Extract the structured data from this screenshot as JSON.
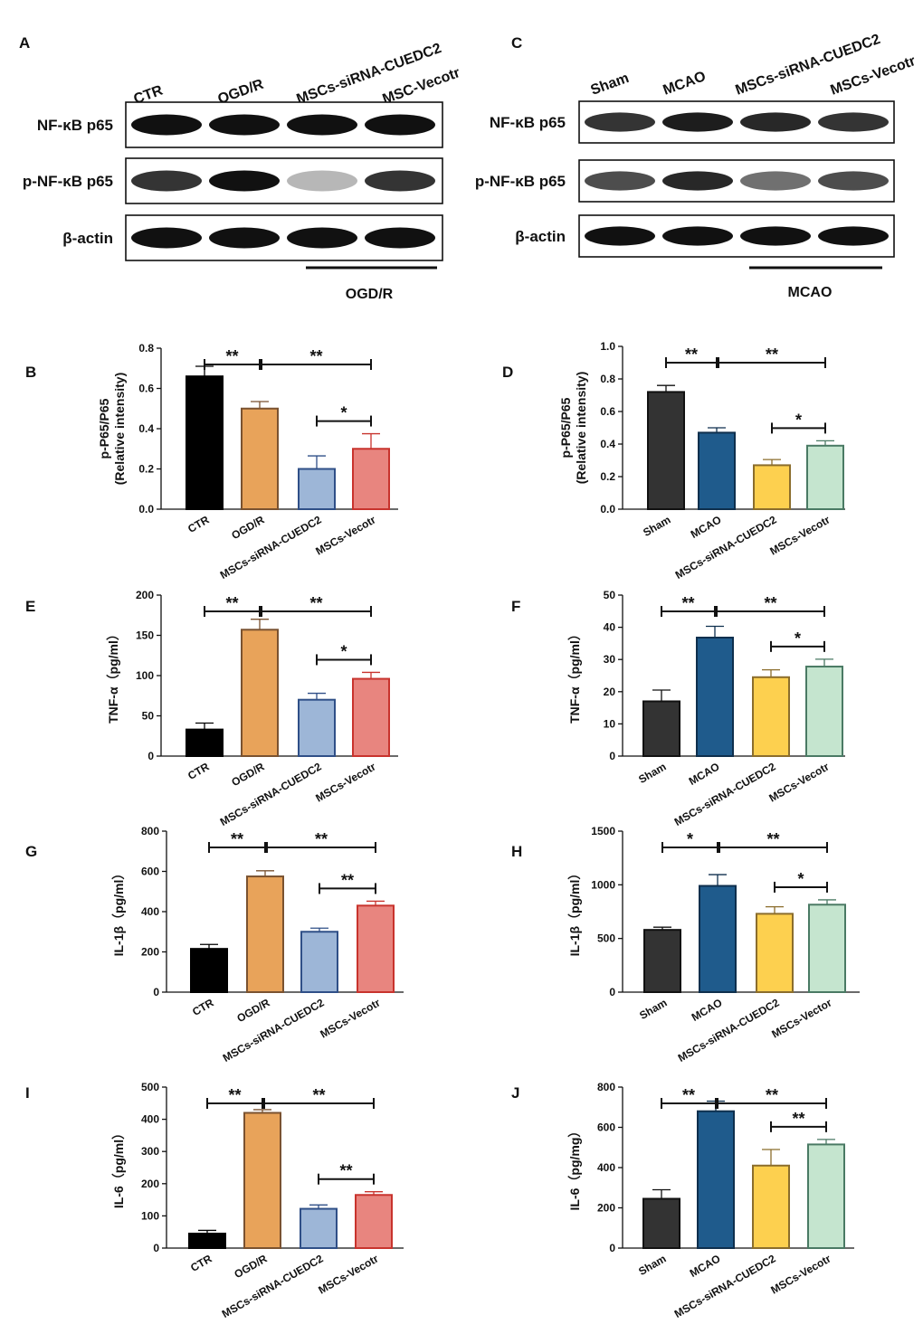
{
  "panel_letters": [
    "A",
    "B",
    "C",
    "D",
    "E",
    "F",
    "G",
    "H",
    "I",
    "J"
  ],
  "western_blots": [
    {
      "panel": "A",
      "lanes": [
        "CTR",
        "OGD/R",
        "MSCs-siRNA-CUEDC2",
        "MSC-Vecotr"
      ],
      "rows": [
        {
          "label": "NF-κB p65",
          "intensities": [
            1.0,
            1.0,
            1.0,
            1.0
          ]
        },
        {
          "label": "p-NF-κB p65",
          "intensities": [
            0.85,
            1.0,
            0.3,
            0.85
          ]
        },
        {
          "label": "β-actin",
          "intensities": [
            1.0,
            1.0,
            1.0,
            1.0
          ]
        }
      ],
      "group_label": "OGD/R"
    },
    {
      "panel": "C",
      "lanes": [
        "Sham",
        "MCAO",
        "MSCs-siRNA-CUEDC2",
        "MSCs-Vecotr"
      ],
      "rows": [
        {
          "label": "NF-κB p65",
          "intensities": [
            0.85,
            0.95,
            0.9,
            0.85
          ]
        },
        {
          "label": "p-NF-κB p65",
          "intensities": [
            0.75,
            0.9,
            0.6,
            0.75
          ]
        },
        {
          "label": "β-actin",
          "intensities": [
            1.0,
            1.0,
            1.0,
            1.0
          ]
        }
      ],
      "group_label": "MCAO"
    }
  ],
  "chart_data": [
    {
      "panel": "B",
      "type": "bar",
      "categories": [
        "CTR",
        "OGD/R",
        "MSCs-siRNA-CUEDC2",
        "MSCs-Vecotr"
      ],
      "values": [
        0.66,
        0.5,
        0.2,
        0.3
      ],
      "errors": [
        0.05,
        0.035,
        0.065,
        0.075
      ],
      "ylabel": "p-P65/P65\n(Relative intensity)",
      "ylim": [
        0,
        0.8
      ],
      "yticks": [
        "0.0",
        "0.2",
        "0.4",
        "0.6",
        "0.8"
      ],
      "colors": [
        "#000000",
        "#e8a35a",
        "#9db6d7",
        "#e8857f"
      ],
      "edge_colors": [
        "#000000",
        "#7a5230",
        "#2f4f87",
        "#c8332d"
      ],
      "significance": [
        {
          "from": 0,
          "to": 1,
          "label": "**"
        },
        {
          "from": 1,
          "to": 3,
          "label": "**"
        },
        {
          "from": 2,
          "to": 3,
          "label": "*"
        }
      ]
    },
    {
      "panel": "D",
      "type": "bar",
      "categories": [
        "Sham",
        "MCAO",
        "MSCs-siRNA-CUEDC2",
        "MSCs-Vecotr"
      ],
      "values": [
        0.72,
        0.47,
        0.27,
        0.39
      ],
      "errors": [
        0.04,
        0.03,
        0.035,
        0.03
      ],
      "ylabel": "p-P65/P65\n(Relative intensity)",
      "ylim": [
        0,
        1.0
      ],
      "yticks": [
        "0.0",
        "0.2",
        "0.4",
        "0.6",
        "0.8",
        "1.0"
      ],
      "colors": [
        "#333333",
        "#1f5b8c",
        "#fdd04f",
        "#c5e5cf"
      ],
      "edge_colors": [
        "#111111",
        "#0e2f4d",
        "#8b6d2c",
        "#4a7a64"
      ],
      "significance": [
        {
          "from": 0,
          "to": 1,
          "label": "**"
        },
        {
          "from": 1,
          "to": 3,
          "label": "**"
        },
        {
          "from": 2,
          "to": 3,
          "label": "*"
        }
      ]
    },
    {
      "panel": "E",
      "type": "bar",
      "categories": [
        "CTR",
        "OGD/R",
        "MSCs-siRNA-CUEDC2",
        "MSCs-Vecotr"
      ],
      "values": [
        33,
        157,
        70,
        96
      ],
      "errors": [
        8,
        13,
        8,
        8
      ],
      "ylabel": "TNF-α（pg/ml）",
      "ylim": [
        0,
        200
      ],
      "yticks": [
        "0",
        "50",
        "100",
        "150",
        "200"
      ],
      "colors": [
        "#000000",
        "#e8a35a",
        "#9db6d7",
        "#e8857f"
      ],
      "edge_colors": [
        "#000000",
        "#7a5230",
        "#2f4f87",
        "#c8332d"
      ],
      "significance": [
        {
          "from": 0,
          "to": 1,
          "label": "**"
        },
        {
          "from": 1,
          "to": 3,
          "label": "**"
        },
        {
          "from": 2,
          "to": 3,
          "label": "*"
        }
      ]
    },
    {
      "panel": "F",
      "type": "bar",
      "categories": [
        "Sham",
        "MCAO",
        "MSCs-siRNA-CUEDC2",
        "MSCs-Vecotr"
      ],
      "values": [
        17,
        36.8,
        24.5,
        27.8
      ],
      "errors": [
        3.5,
        3.5,
        2.3,
        2.3
      ],
      "ylabel": "TNF-α（pg/ml）",
      "ylim": [
        0,
        50
      ],
      "yticks": [
        "0",
        "10",
        "20",
        "30",
        "40",
        "50"
      ],
      "colors": [
        "#333333",
        "#1f5b8c",
        "#fdd04f",
        "#c5e5cf"
      ],
      "edge_colors": [
        "#111111",
        "#0e2f4d",
        "#8b6d2c",
        "#4a7a64"
      ],
      "significance": [
        {
          "from": 0,
          "to": 1,
          "label": "**"
        },
        {
          "from": 1,
          "to": 3,
          "label": "**"
        },
        {
          "from": 2,
          "to": 3,
          "label": "*"
        }
      ]
    },
    {
      "panel": "G",
      "type": "bar",
      "categories": [
        "CTR",
        "OGD/R",
        "MSCs-siRNA-CUEDC2",
        "MSCs-Vecotr"
      ],
      "values": [
        215,
        575,
        300,
        430
      ],
      "errors": [
        22,
        28,
        18,
        22
      ],
      "ylabel": "IL-1β（pg/ml）",
      "ylim": [
        0,
        800
      ],
      "yticks": [
        "0",
        "200",
        "400",
        "600",
        "800"
      ],
      "colors": [
        "#000000",
        "#e8a35a",
        "#9db6d7",
        "#e8857f"
      ],
      "edge_colors": [
        "#000000",
        "#7a5230",
        "#2f4f87",
        "#c8332d"
      ],
      "significance": [
        {
          "from": 0,
          "to": 1,
          "label": "**"
        },
        {
          "from": 1,
          "to": 3,
          "label": "**"
        },
        {
          "from": 2,
          "to": 3,
          "label": "**"
        }
      ]
    },
    {
      "panel": "H",
      "type": "bar",
      "categories": [
        "Sham",
        "MCAO",
        "MSCs-siRNA-CUEDC2",
        "MSCs-Vector"
      ],
      "values": [
        580,
        990,
        730,
        815
      ],
      "errors": [
        25,
        105,
        65,
        45
      ],
      "ylabel": "IL-1β（pg/ml）",
      "ylim": [
        0,
        1500
      ],
      "yticks": [
        "0",
        "500",
        "1000",
        "1500"
      ],
      "colors": [
        "#333333",
        "#1f5b8c",
        "#fdd04f",
        "#c5e5cf"
      ],
      "edge_colors": [
        "#111111",
        "#0e2f4d",
        "#8b6d2c",
        "#4a7a64"
      ],
      "significance": [
        {
          "from": 0,
          "to": 1,
          "label": "*"
        },
        {
          "from": 1,
          "to": 3,
          "label": "**"
        },
        {
          "from": 2,
          "to": 3,
          "label": "*"
        }
      ]
    },
    {
      "panel": "I",
      "type": "bar",
      "categories": [
        "CTR",
        "OGD/R",
        "MSCs-siRNA-CUEDC2",
        "MSCs-Vecotr"
      ],
      "values": [
        45,
        420,
        122,
        165
      ],
      "errors": [
        10,
        10,
        12,
        10
      ],
      "ylabel": "IL-6（pg/ml）",
      "ylim": [
        0,
        500
      ],
      "yticks": [
        "0",
        "100",
        "200",
        "300",
        "400",
        "500"
      ],
      "colors": [
        "#000000",
        "#e8a35a",
        "#9db6d7",
        "#e8857f"
      ],
      "edge_colors": [
        "#000000",
        "#7a5230",
        "#2f4f87",
        "#c8332d"
      ],
      "significance": [
        {
          "from": 0,
          "to": 1,
          "label": "**"
        },
        {
          "from": 1,
          "to": 3,
          "label": "**"
        },
        {
          "from": 2,
          "to": 3,
          "label": "**"
        }
      ]
    },
    {
      "panel": "J",
      "type": "bar",
      "categories": [
        "Sham",
        "MCAO",
        "MSCs-siRNA-CUEDC2",
        "MSCs-Vecotr"
      ],
      "values": [
        245,
        680,
        410,
        515
      ],
      "errors": [
        45,
        50,
        80,
        25
      ],
      "ylabel": "IL-6（pg/mg）",
      "ylim": [
        0,
        800
      ],
      "yticks": [
        "0",
        "200",
        "400",
        "600",
        "800"
      ],
      "colors": [
        "#333333",
        "#1f5b8c",
        "#fdd04f",
        "#c5e5cf"
      ],
      "edge_colors": [
        "#111111",
        "#0e2f4d",
        "#8b6d2c",
        "#4a7a64"
      ],
      "significance": [
        {
          "from": 0,
          "to": 1,
          "label": "**"
        },
        {
          "from": 1,
          "to": 3,
          "label": "**"
        },
        {
          "from": 2,
          "to": 3,
          "label": "**"
        }
      ]
    }
  ]
}
